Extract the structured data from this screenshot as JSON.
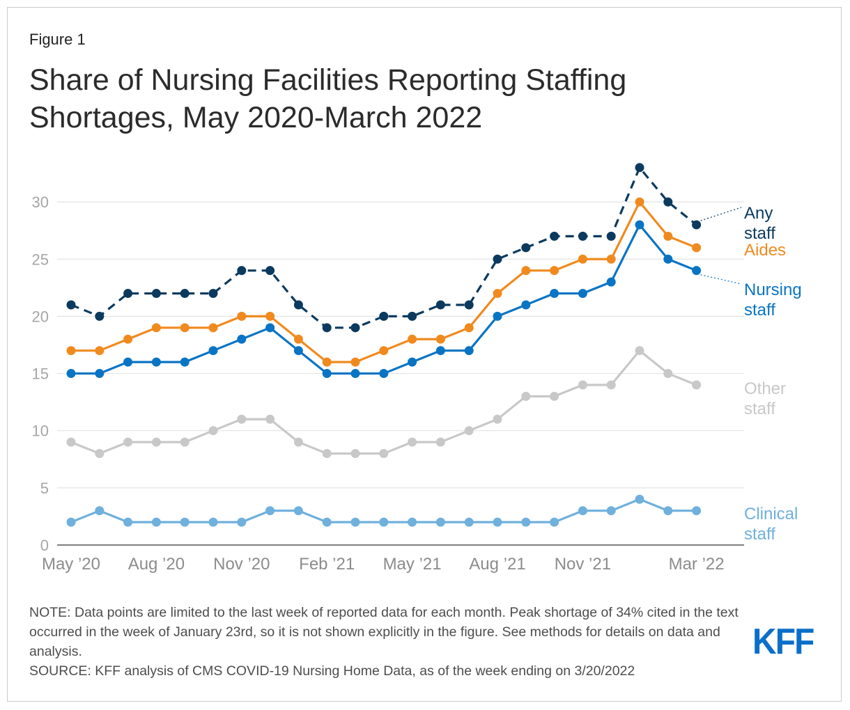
{
  "figure_label": "Figure 1",
  "title_line1": "Share of Nursing Facilities Reporting Staffing",
  "title_line2": "Shortages, May 2020-March 2022",
  "note": "NOTE: Data points are limited to the last week of reported data for each month. Peak shortage of 34% cited in the text occurred in the week of January 23rd, so it is not shown explicitly in the figure. See methods for details on data and analysis.",
  "source": "SOURCE: KFF analysis of CMS COVID-19 Nursing Home Data, as of the week ending on 3/20/2022",
  "logo_text": "KFF",
  "chart_data": {
    "type": "line",
    "title": "Share of Nursing Facilities Reporting Staffing Shortages, May 2020-March 2022",
    "xlabel": "",
    "ylabel": "",
    "ylim": [
      0,
      33
    ],
    "yticks": [
      0,
      5,
      10,
      15,
      20,
      25,
      30
    ],
    "grid": "horizontal",
    "months": [
      "May '20",
      "Jun '20",
      "Jul '20",
      "Aug '20",
      "Sep '20",
      "Oct '20",
      "Nov '20",
      "Dec '20",
      "Jan '21",
      "Feb '21",
      "Mar '21",
      "Apr '21",
      "May '21",
      "Jun '21",
      "Jul '21",
      "Aug '21",
      "Sep '21",
      "Oct '21",
      "Nov '21",
      "Dec '21",
      "Jan '22",
      "Feb '22",
      "Mar '22"
    ],
    "xtick_labels": [
      {
        "index": 0,
        "label": "May ’20"
      },
      {
        "index": 3,
        "label": "Aug ’20"
      },
      {
        "index": 6,
        "label": "Nov ’20"
      },
      {
        "index": 9,
        "label": "Feb ’21"
      },
      {
        "index": 12,
        "label": "May ’21"
      },
      {
        "index": 15,
        "label": "Aug ’21"
      },
      {
        "index": 18,
        "label": "Nov ’21"
      },
      {
        "index": 22,
        "label": "Mar ’22"
      }
    ],
    "series": [
      {
        "name": "Any staff",
        "label_lines": [
          "Any",
          "staff"
        ],
        "color": "#0b3a5e",
        "dashed": true,
        "values": [
          21,
          20,
          22,
          22,
          22,
          22,
          24,
          24,
          21,
          19,
          19,
          20,
          20,
          21,
          21,
          25,
          26,
          27,
          27,
          27,
          33,
          30,
          28
        ]
      },
      {
        "name": "Aides",
        "label_lines": [
          "Aides"
        ],
        "color": "#f08a1f",
        "dashed": false,
        "values": [
          17,
          17,
          18,
          19,
          19,
          19,
          20,
          20,
          18,
          16,
          16,
          17,
          18,
          18,
          19,
          22,
          24,
          24,
          25,
          25,
          30,
          27,
          26
        ]
      },
      {
        "name": "Nursing staff",
        "label_lines": [
          "Nursing",
          "staff"
        ],
        "color": "#0a74c4",
        "dashed": false,
        "values": [
          15,
          15,
          16,
          16,
          16,
          17,
          18,
          19,
          17,
          15,
          15,
          15,
          16,
          17,
          17,
          20,
          21,
          22,
          22,
          23,
          28,
          25,
          24
        ]
      },
      {
        "name": "Other staff",
        "label_lines": [
          "Other",
          "staff"
        ],
        "color": "#c8c8c8",
        "dashed": false,
        "values": [
          9,
          8,
          9,
          9,
          9,
          10,
          11,
          11,
          9,
          8,
          8,
          8,
          9,
          9,
          10,
          11,
          13,
          13,
          14,
          14,
          17,
          15,
          14
        ]
      },
      {
        "name": "Clinical staff",
        "label_lines": [
          "Clinical",
          "staff"
        ],
        "color": "#6fb0dc",
        "dashed": false,
        "values": [
          2,
          3,
          2,
          2,
          2,
          2,
          2,
          3,
          3,
          2,
          2,
          2,
          2,
          2,
          2,
          2,
          2,
          2,
          3,
          3,
          4,
          3,
          3
        ]
      }
    ]
  }
}
